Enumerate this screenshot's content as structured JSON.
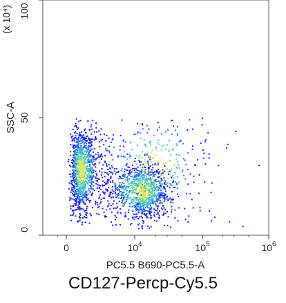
{
  "chart_data": {
    "type": "scatter",
    "plot_style": "flow cytometry density plot",
    "xlabel": "PC5.5 B690-PC5.5-A",
    "ylabel": "SSC-A",
    "y_scale_note": "(x 10⁴)",
    "x_scale": "biexponential",
    "x_ticks": [
      {
        "value": 0,
        "base": "0",
        "exp": ""
      },
      {
        "value": 10000,
        "base": "10",
        "exp": "4"
      },
      {
        "value": 100000,
        "base": "10",
        "exp": "5"
      },
      {
        "value": 1000000,
        "base": "10",
        "exp": "6"
      }
    ],
    "y_ticks": [
      {
        "value": 0,
        "label": "0"
      },
      {
        "value": 50,
        "label": "50"
      },
      {
        "value": 100,
        "label": "100"
      }
    ],
    "ylim": [
      0,
      100
    ],
    "xlim": [
      -2000,
      1000000
    ],
    "density_colors": [
      "#1a1aff",
      "#2a6fe6",
      "#38b8d8",
      "#6fd6a0",
      "#d8e65a"
    ],
    "series": [
      {
        "center_x": 2000,
        "center_y": 28,
        "spread_x_decades": 0.35,
        "spread_y": 9,
        "weight": 0.45
      },
      {
        "center_x": 13000,
        "center_y": 19,
        "spread_x_decades": 0.3,
        "spread_y": 6,
        "weight": 0.4
      },
      {
        "center_x": 20000,
        "center_y": 30,
        "spread_x_decades": 0.6,
        "spread_y": 12,
        "weight": 0.15
      }
    ],
    "grid": false
  },
  "caption": "CD127-Percp-Cy5.5"
}
